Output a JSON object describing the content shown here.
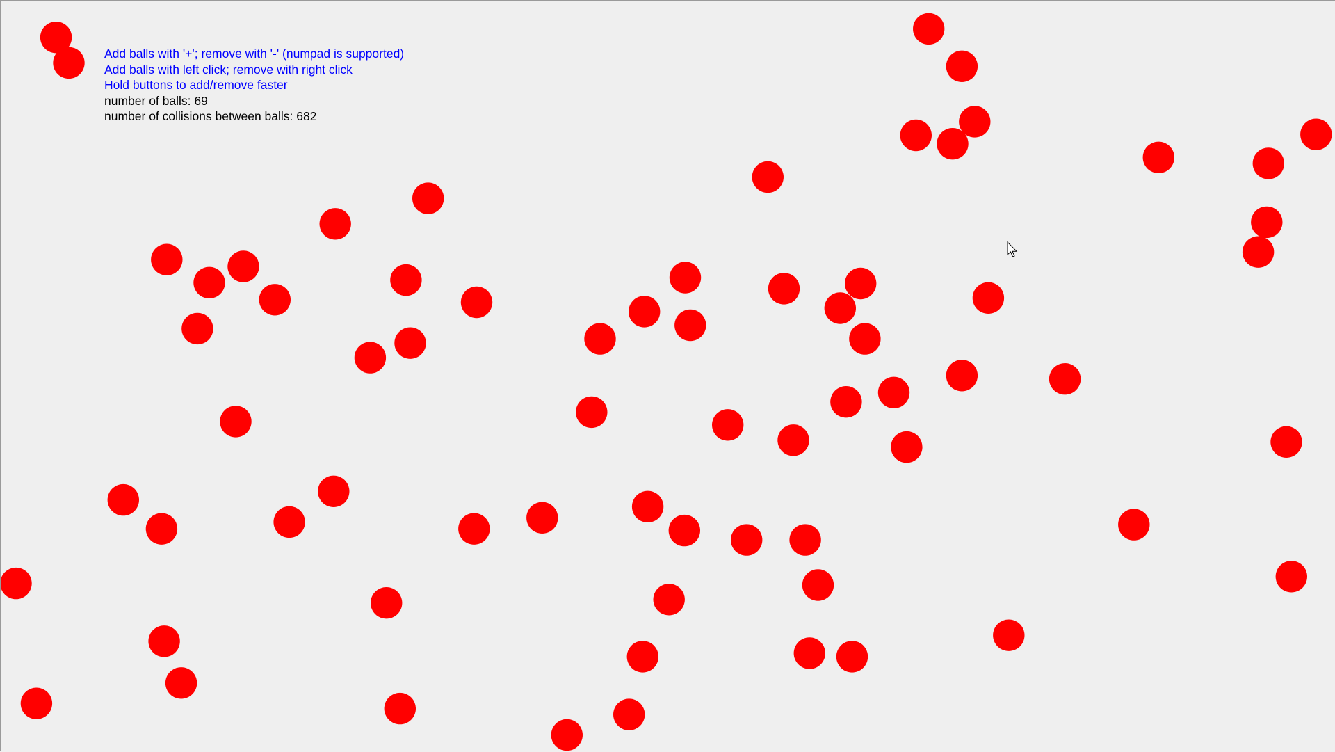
{
  "hud": {
    "instructions": [
      "Add balls with '+'; remove with '-' (numpad is supported)",
      "Add balls with left click; remove with right click",
      "Hold buttons to add/remove faster"
    ],
    "ball_count_label": "number of balls:",
    "ball_count": 69,
    "collisions_label": "number of collisions between balls:",
    "collisions": 682
  },
  "colors": {
    "background": "#efefef",
    "ball": "#ff0000",
    "instruction_text": "#0000ff",
    "stat_text": "#000000"
  },
  "icons": {
    "cursor": "mouse-pointer-icon"
  }
}
